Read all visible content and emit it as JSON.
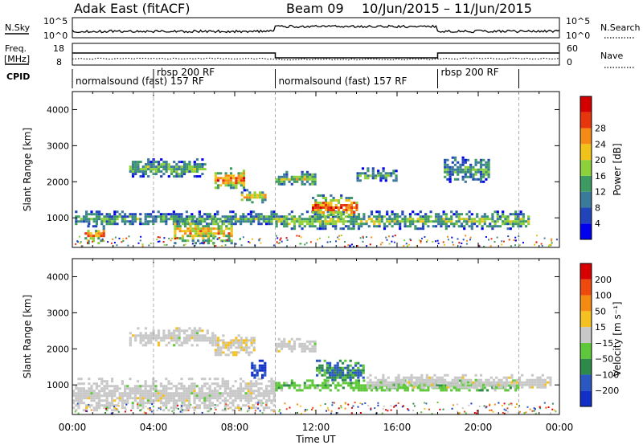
{
  "header": {
    "radar": "Adak East (fitACF)",
    "beam": "Beam 09",
    "dates": "10/Jun/2015 – 11/Jun/2015"
  },
  "noise_panel": {
    "left_label": "N.Sky",
    "right_label": "N.Search",
    "left_ticks": [
      "10^5",
      "10^0"
    ],
    "right_ticks": [
      "10^5",
      "10^0"
    ]
  },
  "freq_panel": {
    "left_label_1": "Freq.",
    "left_label_2": "[MHz]",
    "right_label": "Nave",
    "left_ticks": [
      "18",
      "8"
    ],
    "right_ticks": [
      "60",
      "0"
    ]
  },
  "cpid": {
    "label": "CPID",
    "segments": [
      {
        "start_h": 0,
        "end_h": 4,
        "label": "normalsound (fast) 157 RF"
      },
      {
        "start_h": 4,
        "end_h": 10,
        "label": "rbsp 200 RF"
      },
      {
        "start_h": 10,
        "end_h": 18,
        "label": "normalsound (fast) 157 RF"
      },
      {
        "start_h": 18,
        "end_h": 22,
        "label": "rbsp 200 RF"
      }
    ]
  },
  "chart_data": [
    {
      "type": "heatmap",
      "name_in_figure": "power",
      "ylabel": "Slant Range [km]",
      "y_ticks": [
        "1000",
        "2000",
        "3000",
        "4000"
      ],
      "ylim": [
        180,
        4500
      ],
      "xlim_hours": [
        0,
        24
      ],
      "colorbar": {
        "label": "Power [dB]",
        "ticks": [
          "4",
          "8",
          "12",
          "16",
          "20",
          "24",
          "28"
        ],
        "colors": [
          "#0000ee",
          "#2244bb",
          "#3a7a9a",
          "#3d9a62",
          "#8dd13a",
          "#f1c21a",
          "#f58a14",
          "#e8360c",
          "#d40000"
        ]
      },
      "regions": [
        {
          "t": [
            0.0,
            10.0
          ],
          "r": [
            800,
            1200
          ],
          "level": 0.4
        },
        {
          "t": [
            0.6,
            1.6
          ],
          "r": [
            300,
            800
          ],
          "level": 0.75
        },
        {
          "t": [
            5.0,
            7.8
          ],
          "r": [
            300,
            1000
          ],
          "level": 0.7
        },
        {
          "t": [
            2.8,
            6.5
          ],
          "r": [
            2150,
            2650
          ],
          "level": 0.45
        },
        {
          "t": [
            7.0,
            8.5
          ],
          "r": [
            1800,
            2400
          ],
          "level": 0.8
        },
        {
          "t": [
            8.3,
            9.5
          ],
          "r": [
            1450,
            1800
          ],
          "level": 0.65
        },
        {
          "t": [
            10.0,
            12.0
          ],
          "r": [
            1900,
            2300
          ],
          "level": 0.55
        },
        {
          "t": [
            10.0,
            22.5
          ],
          "r": [
            700,
            1200
          ],
          "level": 0.5
        },
        {
          "t": [
            11.8,
            14.0
          ],
          "r": [
            1000,
            1650
          ],
          "level": 0.85
        },
        {
          "t": [
            14.0,
            16.0
          ],
          "r": [
            2000,
            2400
          ],
          "level": 0.4
        },
        {
          "t": [
            18.3,
            20.5
          ],
          "r": [
            2000,
            2700
          ],
          "level": 0.4
        }
      ]
    },
    {
      "type": "heatmap",
      "name_in_figure": "velocity",
      "ylabel": "Slant Range [km]",
      "xlabel": "Time UT",
      "x_ticks": [
        "00:00",
        "04:00",
        "08:00",
        "12:00",
        "16:00",
        "20:00",
        "00:00"
      ],
      "y_ticks": [
        "1000",
        "2000",
        "3000",
        "4000"
      ],
      "ylim": [
        180,
        4500
      ],
      "xlim_hours": [
        0,
        24
      ],
      "colorbar": {
        "label": "Velocity [m s⁻¹]",
        "ticks": [
          "200",
          "100",
          "50",
          "15",
          "−15",
          "−50",
          "−100",
          "−200"
        ],
        "colors": [
          "#1230c8",
          "#2a58c0",
          "#2e8a4a",
          "#5ec83a",
          "#c8c8c8",
          "#f4c022",
          "#f48a12",
          "#ee4a0e",
          "#d80000"
        ]
      },
      "regions": [
        {
          "t": [
            0.0,
            10.0
          ],
          "r": [
            300,
            1200
          ],
          "v": "gray"
        },
        {
          "t": [
            2.8,
            7.0
          ],
          "r": [
            2100,
            2600
          ],
          "v": "gray"
        },
        {
          "t": [
            7.0,
            9.0
          ],
          "r": [
            1800,
            2400
          ],
          "v": "gray_orange"
        },
        {
          "t": [
            8.8,
            9.5
          ],
          "r": [
            1200,
            1700
          ],
          "v": "blue"
        },
        {
          "t": [
            10.0,
            22.0
          ],
          "r": [
            850,
            1150
          ],
          "v": "green"
        },
        {
          "t": [
            12.0,
            14.3
          ],
          "r": [
            1100,
            1700
          ],
          "v": "blue_green"
        },
        {
          "t": [
            14.5,
            23.5
          ],
          "r": [
            900,
            1300
          ],
          "v": "gray"
        },
        {
          "t": [
            10.0,
            12.0
          ],
          "r": [
            1900,
            2300
          ],
          "v": "gray"
        }
      ]
    }
  ]
}
